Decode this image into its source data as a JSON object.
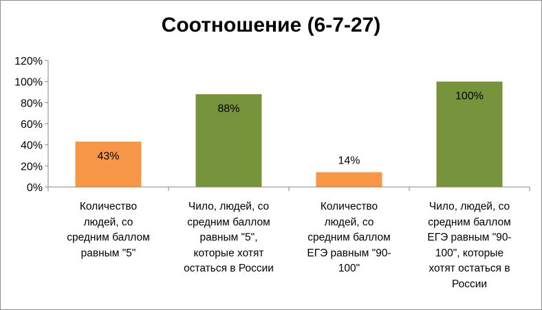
{
  "chart_data": {
    "type": "bar",
    "title": "Соотношение (6-7-27)",
    "categories": [
      "Количество людей, со средним баллом равным \"5\"",
      "Чило, людей, со средним баллом равным \"5\", которые хотят остаться в России",
      "Количество людей, со средним баллом ЕГЭ равным \"90-100\"",
      "Чило, людей, со средним баллом ЕГЭ равным \"90-100\", которые хотят остаться в России"
    ],
    "category_lines": [
      [
        "Количество",
        "людей, со",
        "средним баллом",
        "равным \"5\""
      ],
      [
        "Чило, людей, со",
        "средним баллом",
        "равным \"5\",",
        "которые хотят",
        "остаться в России"
      ],
      [
        "Количество",
        "людей, со",
        "средним баллом",
        "ЕГЭ равным \"90-",
        "100\""
      ],
      [
        "Чило, людей, со",
        "средним баллом",
        "ЕГЭ равным \"90-",
        "100\", которые",
        "хотят остаться в",
        "России"
      ]
    ],
    "values": [
      43,
      88,
      14,
      100
    ],
    "value_labels": [
      "43%",
      "88%",
      "14%",
      "100%"
    ],
    "bar_colors": [
      "#f79646",
      "#77933c",
      "#f79646",
      "#77933c"
    ],
    "ylim": [
      0,
      120
    ],
    "yticks": [
      0,
      20,
      40,
      60,
      80,
      100,
      120
    ],
    "ytick_labels": [
      "0%",
      "20%",
      "40%",
      "60%",
      "80%",
      "100%",
      "120%"
    ],
    "grid": false,
    "legend": "none"
  }
}
